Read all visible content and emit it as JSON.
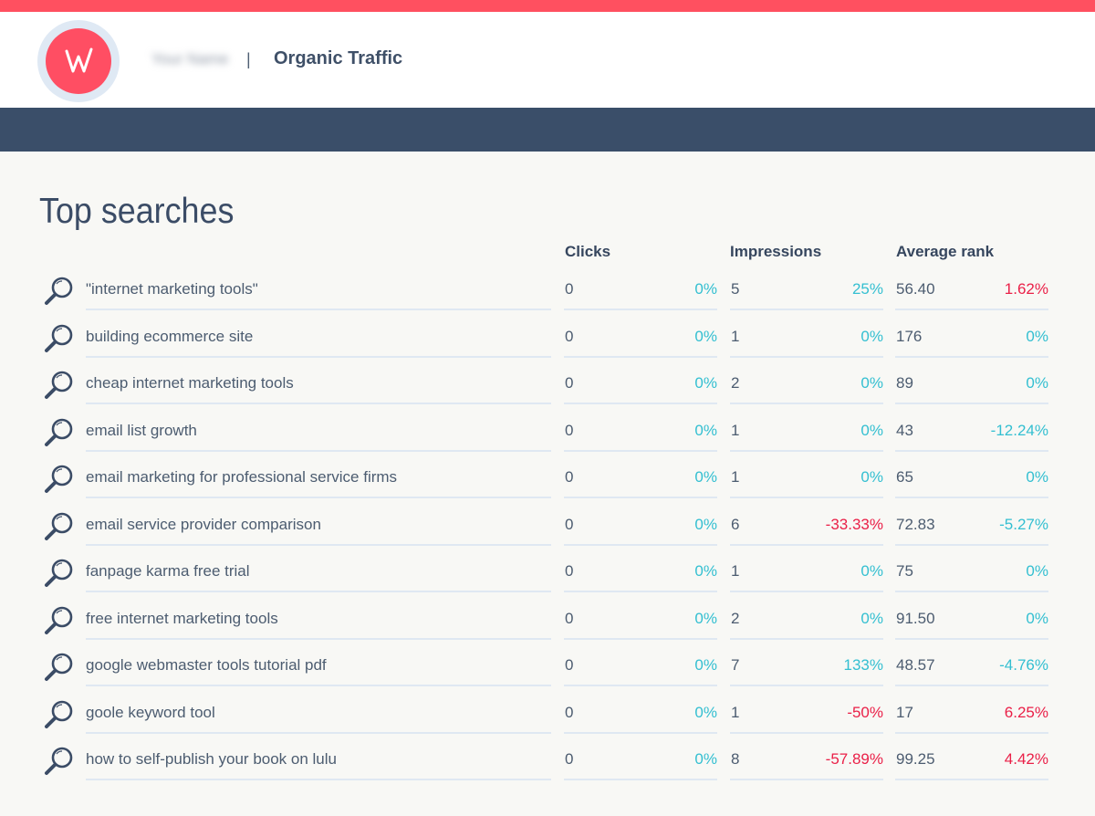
{
  "header": {
    "account_name": "Your Name",
    "divider": "|",
    "page_label": "Organic Traffic"
  },
  "colors": {
    "accent_bar": "#ff5060",
    "logo_fill": "#ff4e63",
    "navbar": "#3a4e69",
    "positive": "#33bfd1",
    "negative": "#ea1f47"
  },
  "icons": {
    "logo": "w-logo-icon",
    "row": "search-icon"
  },
  "section": {
    "title": "Top searches"
  },
  "table": {
    "columns": {
      "clicks": "Clicks",
      "impressions": "Impressions",
      "rank": "Average rank"
    },
    "rows": [
      {
        "query": "\"internet marketing tools\"",
        "clicks": "0",
        "clicks_change": "0%",
        "clicks_dir": "pos",
        "impressions": "5",
        "impressions_change": "25%",
        "impressions_dir": "pos",
        "rank": "56.40",
        "rank_change": "1.62%",
        "rank_dir": "neg"
      },
      {
        "query": "building ecommerce site",
        "clicks": "0",
        "clicks_change": "0%",
        "clicks_dir": "pos",
        "impressions": "1",
        "impressions_change": "0%",
        "impressions_dir": "pos",
        "rank": "176",
        "rank_change": "0%",
        "rank_dir": "pos"
      },
      {
        "query": "cheap internet marketing tools",
        "clicks": "0",
        "clicks_change": "0%",
        "clicks_dir": "pos",
        "impressions": "2",
        "impressions_change": "0%",
        "impressions_dir": "pos",
        "rank": "89",
        "rank_change": "0%",
        "rank_dir": "pos"
      },
      {
        "query": "email list growth",
        "clicks": "0",
        "clicks_change": "0%",
        "clicks_dir": "pos",
        "impressions": "1",
        "impressions_change": "0%",
        "impressions_dir": "pos",
        "rank": "43",
        "rank_change": "-12.24%",
        "rank_dir": "pos"
      },
      {
        "query": "email marketing for professional service firms",
        "clicks": "0",
        "clicks_change": "0%",
        "clicks_dir": "pos",
        "impressions": "1",
        "impressions_change": "0%",
        "impressions_dir": "pos",
        "rank": "65",
        "rank_change": "0%",
        "rank_dir": "pos"
      },
      {
        "query": "email service provider comparison",
        "clicks": "0",
        "clicks_change": "0%",
        "clicks_dir": "pos",
        "impressions": "6",
        "impressions_change": "-33.33%",
        "impressions_dir": "neg",
        "rank": "72.83",
        "rank_change": "-5.27%",
        "rank_dir": "pos"
      },
      {
        "query": "fanpage karma free trial",
        "clicks": "0",
        "clicks_change": "0%",
        "clicks_dir": "pos",
        "impressions": "1",
        "impressions_change": "0%",
        "impressions_dir": "pos",
        "rank": "75",
        "rank_change": "0%",
        "rank_dir": "pos"
      },
      {
        "query": "free internet marketing tools",
        "clicks": "0",
        "clicks_change": "0%",
        "clicks_dir": "pos",
        "impressions": "2",
        "impressions_change": "0%",
        "impressions_dir": "pos",
        "rank": "91.50",
        "rank_change": "0%",
        "rank_dir": "pos"
      },
      {
        "query": "google webmaster tools tutorial pdf",
        "clicks": "0",
        "clicks_change": "0%",
        "clicks_dir": "pos",
        "impressions": "7",
        "impressions_change": "133%",
        "impressions_dir": "pos",
        "rank": "48.57",
        "rank_change": "-4.76%",
        "rank_dir": "pos"
      },
      {
        "query": "goole keyword tool",
        "clicks": "0",
        "clicks_change": "0%",
        "clicks_dir": "pos",
        "impressions": "1",
        "impressions_change": "-50%",
        "impressions_dir": "neg",
        "rank": "17",
        "rank_change": "6.25%",
        "rank_dir": "neg"
      },
      {
        "query": "how to self-publish your book on lulu",
        "clicks": "0",
        "clicks_change": "0%",
        "clicks_dir": "pos",
        "impressions": "8",
        "impressions_change": "-57.89%",
        "impressions_dir": "neg",
        "rank": "99.25",
        "rank_change": "4.42%",
        "rank_dir": "neg"
      }
    ]
  }
}
